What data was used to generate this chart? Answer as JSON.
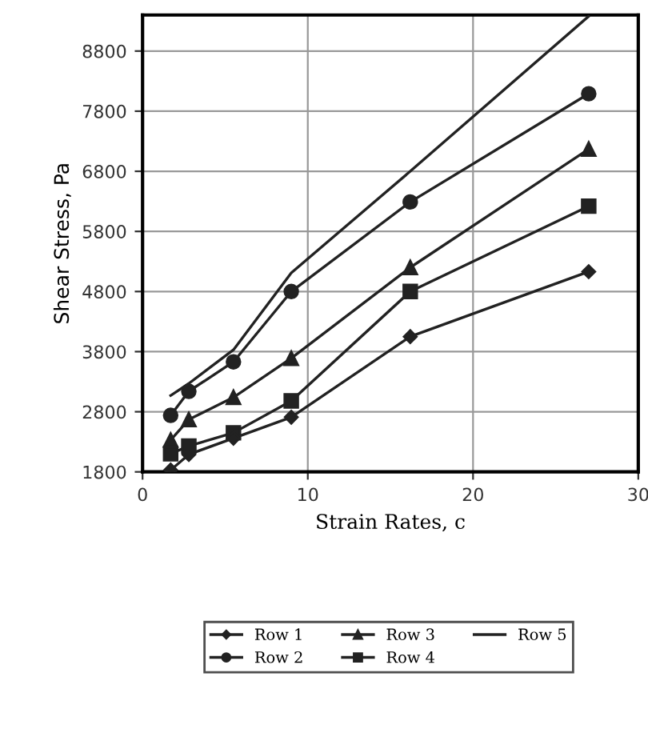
{
  "chart_data": {
    "type": "line",
    "xlabel": "Strain Rates, c",
    "ylabel": "Shear Stress, Pa",
    "x": [
      1.7,
      2.8,
      5.5,
      9,
      16.2,
      27
    ],
    "series": [
      {
        "name": "Row 1",
        "color": "#222222",
        "marker": "diamond",
        "values": [
          1830,
          2090,
          2360,
          2710,
          4050,
          5130
        ]
      },
      {
        "name": "Row 2",
        "color": "#222222",
        "marker": "circle",
        "values": [
          2740,
          3140,
          3630,
          4800,
          6290,
          8090
        ]
      },
      {
        "name": "Row 3",
        "color": "#222222",
        "marker": "triangle",
        "values": [
          2330,
          2670,
          3040,
          3690,
          5200,
          7170
        ]
      },
      {
        "name": "Row 4",
        "color": "#222222",
        "marker": "square",
        "values": [
          2100,
          2230,
          2450,
          2980,
          4800,
          6220
        ]
      },
      {
        "name": "Row 5",
        "color": "#222222",
        "marker": "none",
        "values": [
          3070,
          3270,
          3830,
          5110,
          6800,
          9380
        ]
      }
    ],
    "xlim": [
      0,
      30
    ],
    "xticks": [
      0,
      10,
      20,
      30
    ],
    "ylim": [
      1800,
      9400
    ],
    "yticks": [
      1800,
      2800,
      3800,
      4800,
      5800,
      6800,
      7800,
      8800
    ],
    "grid": true,
    "legend": "bottom"
  }
}
